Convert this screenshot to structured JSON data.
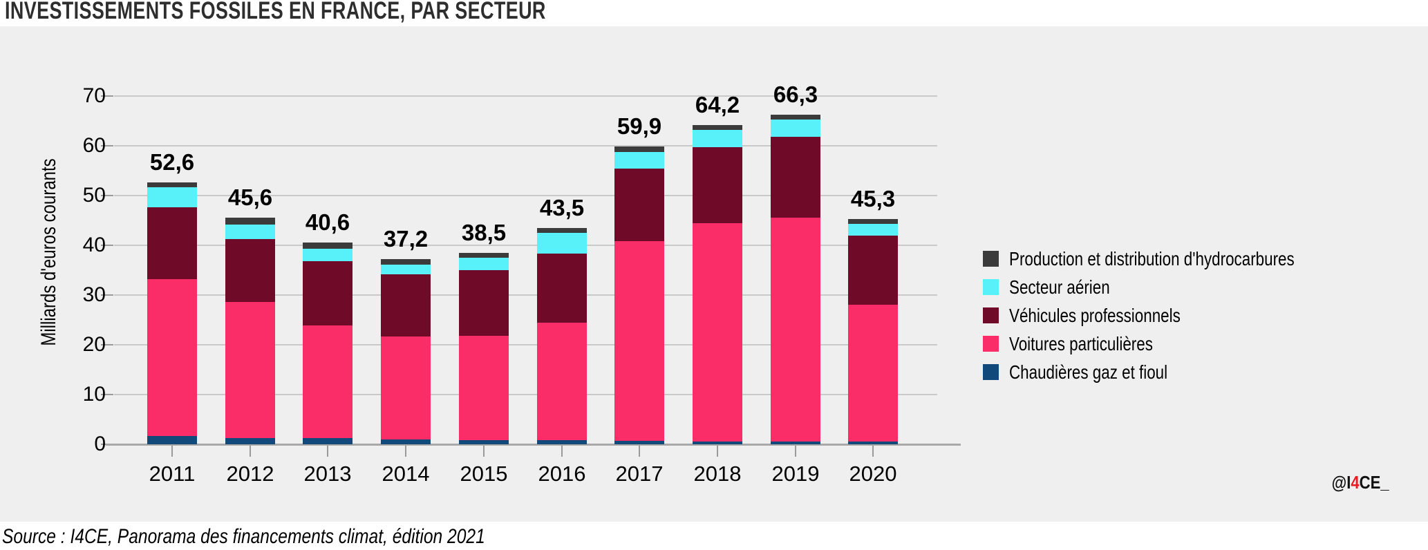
{
  "page": {
    "source": "Source : I4CE, Panorama des financements climat, édition 2021",
    "watermark": {
      "prefix": "@I",
      "highlight": "4",
      "suffix": "CE_"
    }
  },
  "colors": {
    "panel_background": "#EFEFEF",
    "gridline": "#C9C9C9",
    "axis_line": "#A8A8A8",
    "title_text": "#2E2E2E",
    "watermark_red": "#EC1B23"
  },
  "chart_data": {
    "type": "bar",
    "stacked": true,
    "title": "INVESTISSEMENTS FOSSILES EN FRANCE, PAR SECTEUR",
    "ylabel": "Milliards d'euros courants",
    "ylim": [
      0,
      70
    ],
    "yticks": [
      0,
      10,
      20,
      30,
      40,
      50,
      60,
      70
    ],
    "grid": "horizontal",
    "legend_position": "right",
    "categories": [
      "2011",
      "2012",
      "2013",
      "2014",
      "2015",
      "2016",
      "2017",
      "2018",
      "2019",
      "2020"
    ],
    "totals": [
      52.6,
      45.6,
      40.6,
      37.2,
      38.5,
      43.5,
      59.9,
      64.2,
      66.3,
      45.3
    ],
    "total_labels": [
      "52,6",
      "45,6",
      "40,6",
      "37,2",
      "38,5",
      "43,5",
      "59,9",
      "64,2",
      "66,3",
      "45,3"
    ],
    "series": [
      {
        "name": "Chaudières gaz et fioul",
        "color": "#10497A",
        "values": [
          1.6,
          1.2,
          1.2,
          1.0,
          0.8,
          0.8,
          0.7,
          0.6,
          0.5,
          0.5
        ]
      },
      {
        "name": "Voitures particulières",
        "color": "#FB2D68",
        "values": [
          31.6,
          27.4,
          22.7,
          20.7,
          21.0,
          23.7,
          40.1,
          43.8,
          45.1,
          27.5
        ]
      },
      {
        "name": "Véhicules professionnels",
        "color": "#6F0A28",
        "values": [
          14.4,
          12.7,
          12.9,
          12.4,
          13.2,
          13.9,
          14.6,
          15.3,
          16.2,
          13.9
        ]
      },
      {
        "name": "Secteur aérien",
        "color": "#58F1F9",
        "values": [
          4.0,
          2.9,
          2.5,
          2.0,
          2.5,
          4.1,
          3.4,
          3.5,
          3.5,
          2.4
        ]
      },
      {
        "name": "Production et distribution d'hydrocarbures",
        "color": "#3B3B3B",
        "values": [
          1.0,
          1.4,
          1.3,
          1.1,
          1.0,
          1.0,
          1.1,
          1.0,
          1.0,
          1.0
        ]
      }
    ],
    "legend": [
      "Production et distribution d'hydrocarbures",
      "Secteur aérien",
      "Véhicules professionnels",
      "Voitures particulières",
      "Chaudières gaz et fioul"
    ]
  }
}
